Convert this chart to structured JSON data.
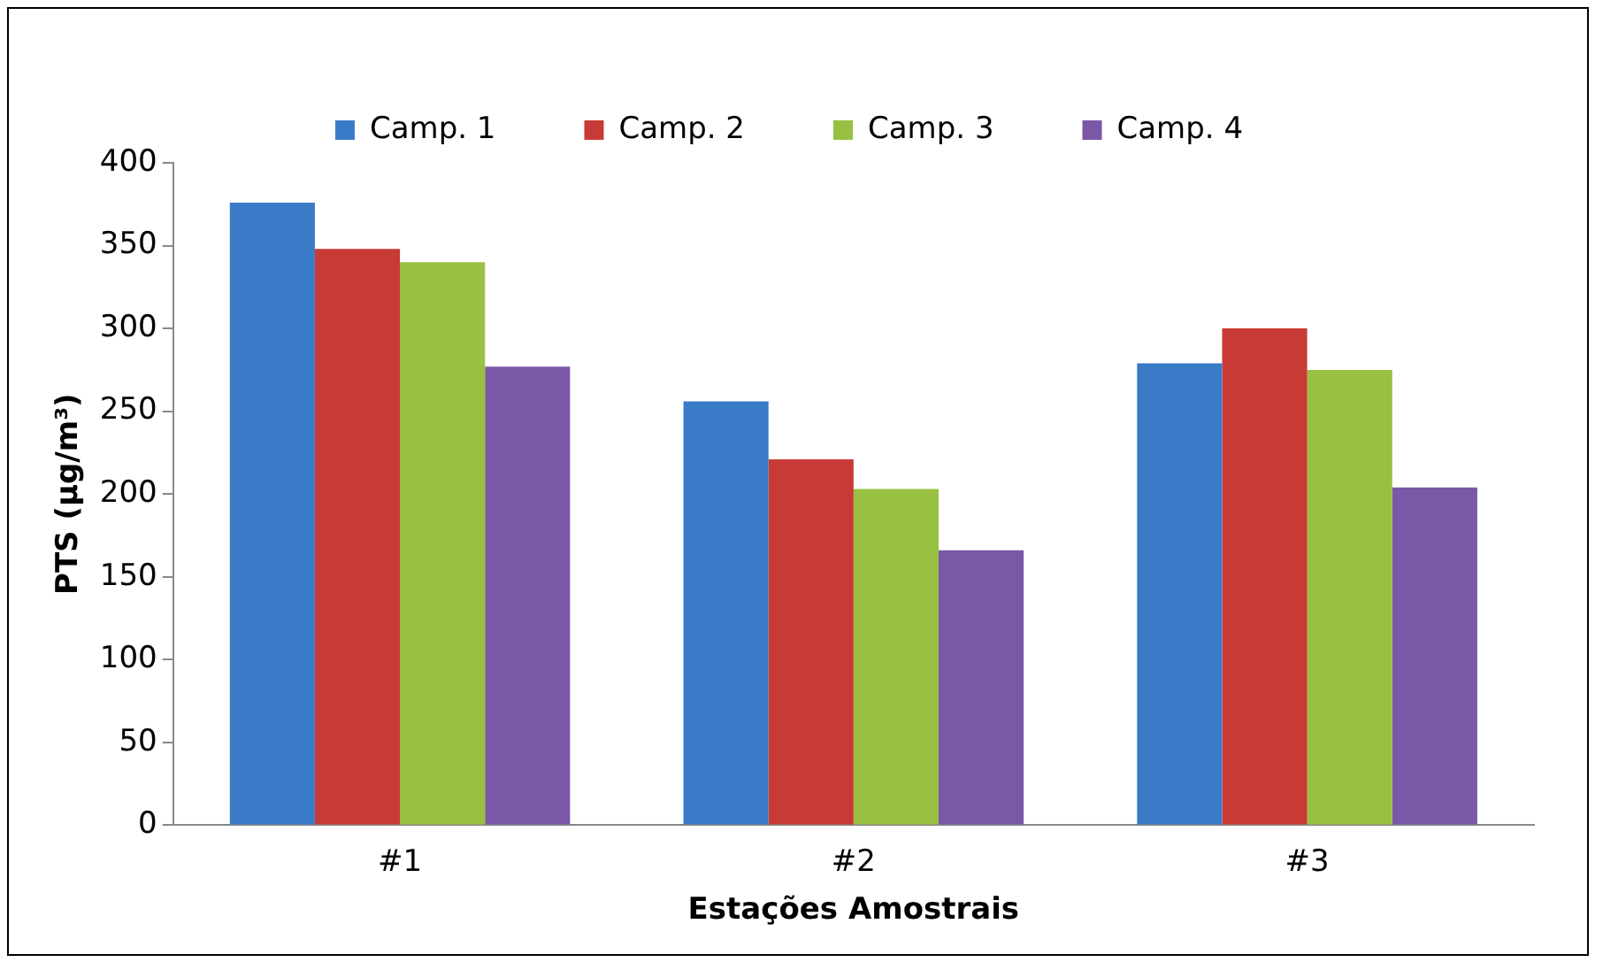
{
  "chart_data": {
    "type": "bar",
    "xlabel": "Estações Amostrais",
    "ylabel": "PTS (µg/m³)",
    "categories": [
      "#1",
      "#2",
      "#3"
    ],
    "series": [
      {
        "name": "Camp. 1",
        "color": "#3a7bc8",
        "values": [
          376,
          256,
          279
        ]
      },
      {
        "name": "Camp. 2",
        "color": "#c83a36",
        "values": [
          348,
          221,
          300
        ]
      },
      {
        "name": "Camp. 3",
        "color": "#98c142",
        "values": [
          340,
          203,
          275
        ]
      },
      {
        "name": "Camp. 4",
        "color": "#7a58a8",
        "values": [
          277,
          166,
          204
        ]
      }
    ],
    "ylim": [
      0,
      400
    ],
    "yticks": [
      0,
      50,
      100,
      150,
      200,
      250,
      300,
      350,
      400
    ],
    "grid": false,
    "legend": "top"
  }
}
